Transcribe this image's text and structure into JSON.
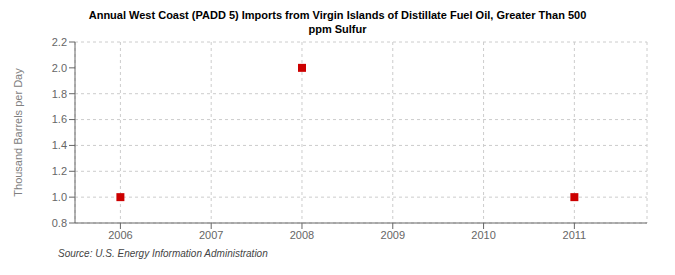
{
  "chart_data": {
    "type": "scatter",
    "title": "Annual West Coast (PADD 5) Imports from Virgin Islands of Distillate Fuel Oil, Greater Than 500\nppm Sulfur",
    "ylabel": "Thousand Barrels per Day",
    "annotations": [
      "Source: U.S. Energy Information Administration"
    ],
    "x": [
      2006,
      2008,
      2011
    ],
    "values": [
      1.0,
      2.0,
      1.0
    ],
    "color": "#CC0000",
    "marker": "square",
    "xlim": [
      2005.5,
      2011.8
    ],
    "ylim": [
      0.8,
      2.2
    ],
    "xticks": [
      2006,
      2007,
      2008,
      2009,
      2010,
      2011
    ],
    "yticks": [
      0.8,
      {
        "value": 1.0,
        "label": "1.0"
      },
      1.2,
      1.4,
      1.6,
      1.8,
      {
        "value": 2.0,
        "label": "2.0"
      },
      2.2
    ],
    "grid": true
  }
}
